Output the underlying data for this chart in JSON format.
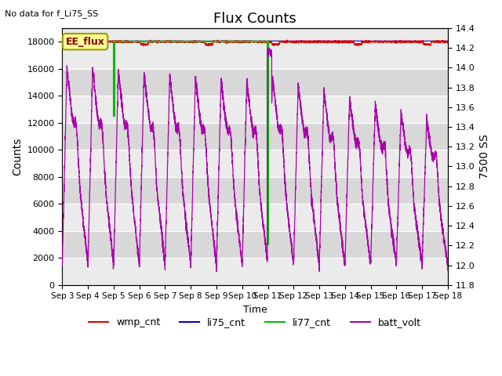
{
  "title": "Flux Counts",
  "top_left_text": "No data for f_Li75_SS",
  "annotation_text": "EE_flux",
  "xlabel": "Time",
  "ylabel_left": "Counts",
  "ylabel_right": "7500 SS",
  "ylim_left": [
    0,
    19000
  ],
  "ylim_right": [
    11.8,
    14.4
  ],
  "xtick_labels": [
    "Sep 3",
    "Sep 4",
    "Sep 5",
    "Sep 6",
    "Sep 7",
    "Sep 8",
    "Sep 9",
    "Sep 10",
    "Sep 11",
    "Sep 12",
    "Sep 13",
    "Sep 14",
    "Sep 15",
    "Sep 16",
    "Sep 17",
    "Sep 18"
  ],
  "yticks_left": [
    0,
    2000,
    4000,
    6000,
    8000,
    10000,
    12000,
    14000,
    16000,
    18000
  ],
  "yticks_right": [
    11.8,
    12.0,
    12.2,
    12.4,
    12.6,
    12.8,
    13.0,
    13.2,
    13.4,
    13.6,
    13.8,
    14.0,
    14.2,
    14.4
  ],
  "wmp_color": "#dd0000",
  "li75_color": "#0000cc",
  "li77_color": "#00bb00",
  "batt_color": "#aa00aa",
  "background_color": "#ffffff",
  "plot_bg_light": "#ebebeb",
  "plot_bg_dark": "#d8d8d8",
  "grid_color": "#ffffff",
  "annotation_bg": "#ffff99",
  "annotation_border": "#999900"
}
